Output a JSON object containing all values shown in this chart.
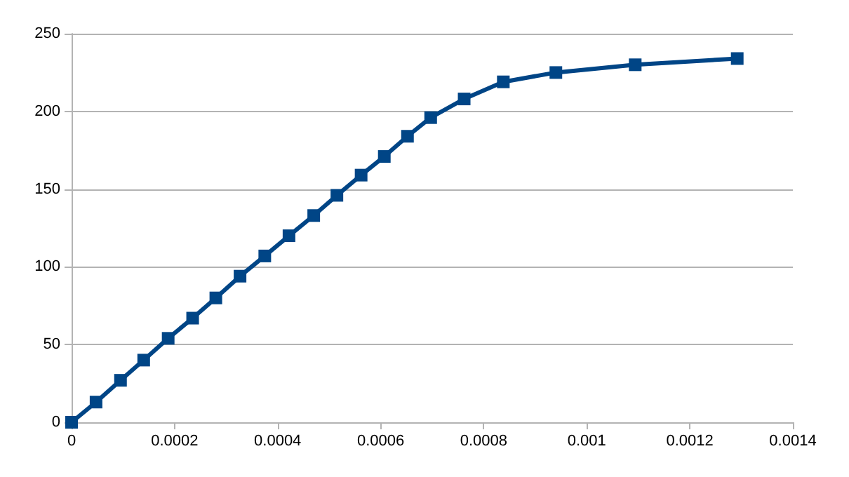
{
  "chart_data": {
    "type": "line",
    "x": [
      0,
      4.75e-05,
      9.5e-05,
      0.00014,
      0.0001875,
      0.000235,
      0.00028,
      0.000327,
      0.000375,
      0.000422,
      0.00047,
      0.000515,
      0.000562,
      0.000607,
      0.000652,
      0.000697,
      0.000762,
      0.000838,
      0.00094,
      0.001094,
      0.001292
    ],
    "series": [
      {
        "color": "#004586",
        "values": [
          0,
          13,
          27,
          40,
          54,
          67,
          80,
          94,
          107,
          120,
          133,
          146,
          159,
          171,
          184,
          196,
          208,
          219,
          225,
          230,
          234
        ]
      }
    ],
    "xlim": [
      0,
      0.0014
    ],
    "xticks": [
      0,
      0.0002,
      0.0004,
      0.0006,
      0.0008,
      0.001,
      0.0012,
      0.0014
    ],
    "ylim": [
      0,
      250
    ],
    "yticks": [
      0,
      50,
      100,
      150,
      200,
      250
    ],
    "grid": "y",
    "marker": "square",
    "line_style": "solid"
  }
}
